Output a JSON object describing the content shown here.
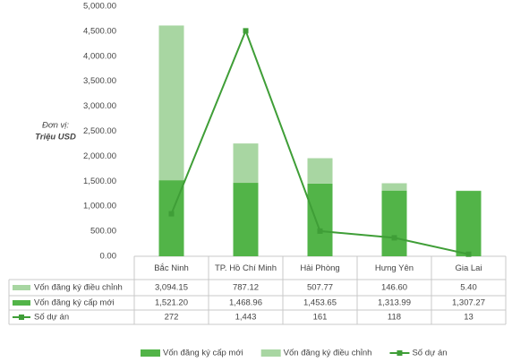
{
  "chart_data": {
    "type": "bar",
    "stacked": true,
    "ylabel": [
      "Đơn vị:",
      "Triệu USD"
    ],
    "categories": [
      "Bắc Ninh",
      "TP. Hồ Chí Minh",
      "Hải Phòng",
      "Hưng Yên",
      "Gia Lai"
    ],
    "series": [
      {
        "name": "Vốn đăng ký cấp mới",
        "color": "#52b448",
        "type": "bar",
        "values": [
          1521.2,
          1468.96,
          1453.65,
          1313.99,
          1307.27
        ],
        "value_labels": [
          "1,521.20",
          "1,468.96",
          "1,453.65",
          "1,313.99",
          "1,307.27"
        ]
      },
      {
        "name": "Vốn đăng ký điều chỉnh",
        "color": "#a8d6a2",
        "type": "bar",
        "values": [
          3094.15,
          787.12,
          507.77,
          146.6,
          5.4
        ],
        "value_labels": [
          "3,094.15",
          "787.12",
          "507.77",
          "146.60",
          "5.40"
        ]
      },
      {
        "name": "Số dự án",
        "color": "#3f9e37",
        "type": "line",
        "axis": "y2",
        "values": [
          272,
          1443,
          161,
          118,
          13
        ],
        "value_labels": [
          "272",
          "1,443",
          "161",
          "118",
          "13"
        ]
      }
    ],
    "ylim": [
      0,
      5000
    ],
    "yticks": [
      {
        "value": 0,
        "label": "0.00"
      },
      {
        "value": 500,
        "label": "500.00"
      },
      {
        "value": 1000,
        "label": "1,000.00"
      },
      {
        "value": 1500,
        "label": "1,500.00"
      },
      {
        "value": 2000,
        "label": "2,000.00"
      },
      {
        "value": 2500,
        "label": "2,500.00"
      },
      {
        "value": 3000,
        "label": "3,000.00"
      },
      {
        "value": 3500,
        "label": "3,500.00"
      },
      {
        "value": 4000,
        "label": "4,000.00"
      },
      {
        "value": 4500,
        "label": "4,500.00"
      },
      {
        "value": 5000,
        "label": "5,000.00"
      }
    ],
    "y2lim": [
      0,
      1600
    ],
    "legend": "bottom"
  }
}
